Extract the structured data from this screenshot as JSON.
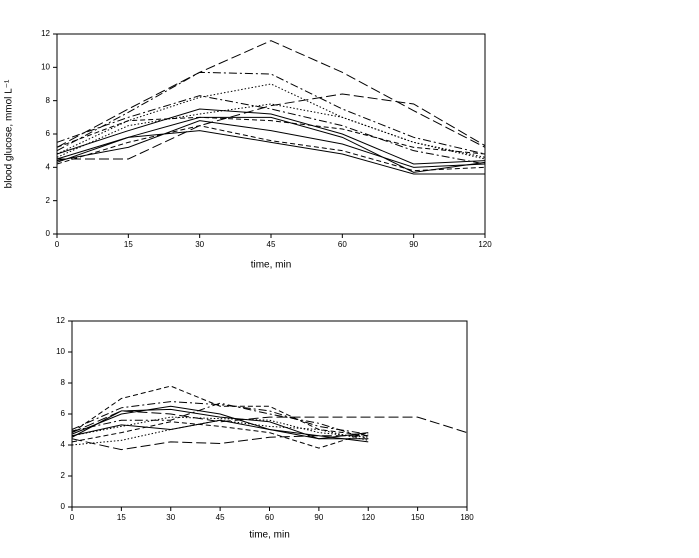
{
  "chart_data": [
    {
      "type": "line",
      "x_label": "time, min",
      "y_label": "blood glucose, mmol L⁻¹",
      "categories": [
        "0",
        "15",
        "30",
        "45",
        "60",
        "90",
        "120"
      ],
      "ylim": [
        0,
        12
      ],
      "yticks": [
        0,
        2,
        4,
        6,
        8,
        10,
        12
      ],
      "series": [
        {
          "color": "#000",
          "dash": "longdash",
          "values": [
            5.2,
            7.5,
            9.7,
            11.6,
            9.7,
            7.4,
            5.2
          ]
        },
        {
          "color": "#000",
          "dash": "dashdot",
          "values": [
            5.0,
            7.3,
            9.7,
            9.6,
            7.5,
            5.8,
            4.8
          ]
        },
        {
          "color": "#000",
          "dash": "dot",
          "values": [
            4.8,
            6.8,
            8.2,
            9.0,
            7.0,
            5.5,
            4.6
          ]
        },
        {
          "color": "#000",
          "dash": "longdash",
          "values": [
            4.5,
            4.5,
            6.5,
            7.7,
            8.4,
            7.8,
            5.3
          ]
        },
        {
          "color": "#000",
          "dash": "solid",
          "values": [
            4.5,
            5.8,
            7.0,
            7.0,
            5.8,
            3.7,
            4.3
          ]
        },
        {
          "color": "#000",
          "dash": "solid",
          "values": [
            4.8,
            6.2,
            7.5,
            7.2,
            6.0,
            4.2,
            4.4
          ]
        },
        {
          "color": "#000",
          "dash": "dash",
          "values": [
            4.2,
            5.5,
            6.5,
            5.6,
            5.0,
            3.8,
            4.0
          ]
        },
        {
          "color": "#000",
          "dash": "dashdot",
          "values": [
            5.5,
            7.0,
            8.3,
            7.5,
            6.5,
            5.0,
            4.2
          ]
        },
        {
          "color": "#000",
          "dash": "solid",
          "values": [
            4.3,
            5.8,
            6.2,
            5.5,
            4.8,
            3.6,
            3.6
          ]
        },
        {
          "color": "#000",
          "dash": "dot",
          "values": [
            4.6,
            6.5,
            7.2,
            7.8,
            7.0,
            5.5,
            4.5
          ]
        },
        {
          "color": "#000",
          "dash": "dash",
          "values": [
            5.2,
            6.8,
            7.0,
            6.8,
            6.3,
            5.2,
            4.8
          ]
        },
        {
          "color": "#000",
          "dash": "solid",
          "values": [
            4.4,
            5.2,
            6.8,
            6.2,
            5.4,
            4.0,
            4.2
          ]
        }
      ]
    },
    {
      "type": "line",
      "x_label": "time, min",
      "categories": [
        "0",
        "15",
        "30",
        "45",
        "60",
        "90",
        "120",
        "150",
        "180"
      ],
      "ylim": [
        0,
        12
      ],
      "yticks": [
        0,
        2,
        4,
        6,
        8,
        10,
        12
      ],
      "series": [
        {
          "color": "#000",
          "dash": "longdash",
          "values": [
            4.8,
            6.2,
            6.0,
            5.5,
            5.8,
            5.8,
            5.8,
            5.8,
            4.8
          ]
        },
        {
          "color": "#000",
          "dash": "dash",
          "values": [
            4.8,
            7.0,
            7.8,
            6.5,
            6.5,
            5.0,
            4.6,
            null,
            null
          ]
        },
        {
          "color": "#000",
          "dash": "dashdot",
          "values": [
            5.0,
            6.4,
            6.8,
            6.6,
            6.2,
            5.2,
            4.7,
            null,
            null
          ]
        },
        {
          "color": "#000",
          "dash": "longdash",
          "values": [
            4.4,
            3.7,
            4.2,
            4.1,
            4.5,
            4.6,
            4.6,
            null,
            null
          ]
        },
        {
          "color": "#000",
          "dash": "solid",
          "values": [
            4.7,
            6.0,
            6.5,
            6.0,
            5.0,
            4.4,
            4.4,
            null,
            null
          ]
        },
        {
          "color": "#000",
          "dash": "dot",
          "values": [
            4.6,
            5.2,
            5.8,
            5.7,
            5.6,
            4.8,
            4.5,
            null,
            null
          ]
        },
        {
          "color": "#000",
          "dash": "dashdot",
          "values": [
            4.9,
            5.6,
            5.6,
            6.7,
            6.0,
            5.4,
            4.4,
            null,
            null
          ]
        },
        {
          "color": "#000",
          "dash": "solid",
          "values": [
            4.6,
            5.3,
            5.0,
            5.6,
            5.0,
            4.6,
            4.2,
            null,
            null
          ]
        },
        {
          "color": "#000",
          "dash": "dash",
          "values": [
            4.2,
            4.8,
            5.5,
            5.2,
            4.8,
            3.8,
            4.8,
            null,
            null
          ]
        },
        {
          "color": "#000",
          "dash": "solid",
          "values": [
            4.5,
            6.2,
            6.3,
            5.8,
            5.5,
            4.4,
            4.8,
            null,
            null
          ]
        },
        {
          "color": "#000",
          "dash": "dot",
          "values": [
            4.0,
            4.3,
            5.0,
            5.6,
            5.2,
            5.0,
            4.3,
            null,
            null
          ]
        }
      ]
    }
  ]
}
